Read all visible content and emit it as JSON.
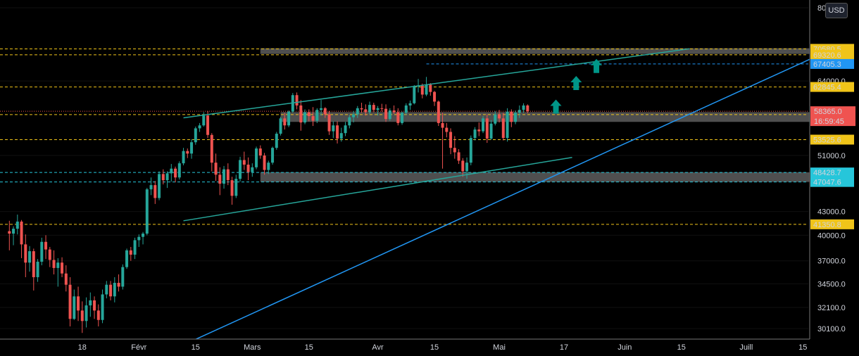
{
  "currency": "USD",
  "chart_data": {
    "type": "candlestick",
    "y_axis_ticks": [
      30100.0,
      32100.0,
      34500.0,
      37000.0,
      40000.0,
      43000.0,
      51000.0,
      64000.0,
      80000.0
    ],
    "x_axis_ticks": [
      {
        "label": "18",
        "day": 18
      },
      {
        "label": "Févr",
        "day": 32
      },
      {
        "label": "15",
        "day": 46
      },
      {
        "label": "Mars",
        "day": 60
      },
      {
        "label": "15",
        "day": 74
      },
      {
        "label": "Avr",
        "day": 91
      },
      {
        "label": "15",
        "day": 105
      },
      {
        "label": "Mai",
        "day": 121
      },
      {
        "label": "17",
        "day": 137
      },
      {
        "label": "Juin",
        "day": 152
      },
      {
        "label": "15",
        "day": 166
      },
      {
        "label": "Juill",
        "day": 182
      },
      {
        "label": "15",
        "day": 196
      }
    ],
    "price_levels": [
      {
        "label": "70580.5",
        "value": 70580.5,
        "kind": "resistance",
        "color": "#f0c419"
      },
      {
        "label": "69320.6",
        "value": 69320.6,
        "kind": "resistance",
        "color": "#f0c419"
      },
      {
        "label": "67405.3",
        "value": 67405.3,
        "kind": "target",
        "color": "#2196f3"
      },
      {
        "label": "62845.4",
        "value": 62845.4,
        "kind": "resistance",
        "color": "#f0c419"
      },
      {
        "label": "57773.3",
        "value": 57773.3,
        "kind": "support",
        "color": "#f0c419"
      },
      {
        "label": "53525.6",
        "value": 53525.6,
        "kind": "support",
        "color": "#f0c419"
      },
      {
        "label": "48428.7",
        "value": 48428.7,
        "kind": "support",
        "color": "#26c6da"
      },
      {
        "label": "47047.6",
        "value": 47047.6,
        "kind": "support",
        "color": "#26c6da"
      },
      {
        "label": "41350.8",
        "value": 41350.8,
        "kind": "support",
        "color": "#f0c419"
      }
    ],
    "current_price": {
      "label": "58365.0",
      "value": 58365.0,
      "countdown": "16:59:45",
      "color": "#ef5350"
    },
    "zones": [
      {
        "from_day": 62,
        "to_day": 206,
        "low": 69500,
        "high": 70700
      },
      {
        "from_day": 67,
        "to_day": 204,
        "low": 56500,
        "high": 58200
      },
      {
        "from_day": 62,
        "to_day": 207,
        "low": 47050,
        "high": 48450
      }
    ],
    "trendlines": [
      {
        "name": "upper channel",
        "color": "#26a69a",
        "points": [
          [
            43,
            57200
          ],
          [
            168,
            70600
          ]
        ]
      },
      {
        "name": "lower channel",
        "color": "#26a69a",
        "points": [
          [
            43,
            41800
          ],
          [
            139,
            50700
          ]
        ]
      },
      {
        "name": "rising support",
        "color": "#2196f3",
        "points": [
          [
            44,
            28800
          ],
          [
            230,
            82000
          ]
        ]
      },
      {
        "name": "dashed target",
        "color": "#2196f3",
        "points": [
          [
            103,
            67405
          ],
          [
            207,
            67405
          ]
        ]
      }
    ],
    "arrows": [
      {
        "day": 135,
        "price": 59200
      },
      {
        "day": 140,
        "price": 63600
      },
      {
        "day": 145,
        "price": 67000
      }
    ],
    "candles": [
      [
        0,
        40500,
        41800,
        38200,
        40200
      ],
      [
        1,
        40200,
        41100,
        38800,
        40800
      ],
      [
        2,
        40800,
        42600,
        40100,
        41700
      ],
      [
        3,
        41700,
        41900,
        37300,
        38900
      ],
      [
        4,
        38900,
        40100,
        35200,
        36800
      ],
      [
        5,
        36800,
        38700,
        35800,
        38100
      ],
      [
        6,
        38100,
        38400,
        33800,
        35200
      ],
      [
        7,
        35200,
        37200,
        34700,
        36900
      ],
      [
        8,
        36900,
        39700,
        36500,
        39200
      ],
      [
        9,
        39200,
        40000,
        37200,
        38300
      ],
      [
        10,
        38300,
        38600,
        36300,
        37100
      ],
      [
        11,
        37100,
        38200,
        35500,
        36200
      ],
      [
        12,
        36200,
        37300,
        34200,
        36800
      ],
      [
        13,
        36800,
        37400,
        35200,
        35600
      ],
      [
        14,
        35600,
        36500,
        33700,
        34400
      ],
      [
        15,
        34400,
        35200,
        30300,
        31000
      ],
      [
        16,
        31000,
        33900,
        30900,
        33200
      ],
      [
        17,
        33200,
        34200,
        30800,
        31800
      ],
      [
        18,
        31800,
        32700,
        29700,
        30800
      ],
      [
        19,
        30800,
        33100,
        30200,
        32300
      ],
      [
        20,
        32300,
        33600,
        31200,
        32800
      ],
      [
        21,
        32800,
        33200,
        31000,
        31800
      ],
      [
        22,
        31800,
        32400,
        30300,
        30900
      ],
      [
        23,
        30900,
        33900,
        30600,
        33400
      ],
      [
        24,
        33400,
        34800,
        33000,
        34400
      ],
      [
        25,
        34400,
        34800,
        32800,
        33200
      ],
      [
        26,
        33200,
        35200,
        32600,
        34600
      ],
      [
        27,
        34600,
        35500,
        33700,
        34200
      ],
      [
        28,
        34200,
        36600,
        33900,
        36300
      ],
      [
        29,
        36300,
        38400,
        36100,
        38200
      ],
      [
        30,
        38200,
        38600,
        37000,
        37700
      ],
      [
        31,
        37700,
        39700,
        37200,
        39400
      ],
      [
        32,
        39400,
        40100,
        38600,
        39800
      ],
      [
        33,
        39800,
        40400,
        38900,
        40200
      ],
      [
        34,
        40200,
        46200,
        40000,
        46000
      ],
      [
        35,
        46000,
        47700,
        45200,
        46600
      ],
      [
        36,
        46600,
        47200,
        44000,
        44800
      ],
      [
        37,
        44800,
        48600,
        44500,
        48200
      ],
      [
        38,
        48200,
        48900,
        46700,
        47300
      ],
      [
        39,
        47300,
        48600,
        46200,
        48300
      ],
      [
        40,
        48300,
        49700,
        47100,
        49000
      ],
      [
        41,
        49000,
        49300,
        47000,
        47700
      ],
      [
        42,
        47700,
        50100,
        47400,
        49800
      ],
      [
        43,
        49800,
        52200,
        49500,
        51700
      ],
      [
        44,
        51700,
        52100,
        50600,
        51300
      ],
      [
        45,
        51300,
        53600,
        50500,
        53100
      ],
      [
        46,
        53100,
        55700,
        52700,
        55400
      ],
      [
        47,
        55400,
        56300,
        54800,
        55900
      ],
      [
        48,
        55900,
        58200,
        55700,
        57600
      ],
      [
        49,
        57600,
        58400,
        53800,
        54300
      ],
      [
        50,
        54300,
        54600,
        48600,
        49900
      ],
      [
        51,
        49900,
        51300,
        47200,
        48100
      ],
      [
        52,
        48100,
        49200,
        45200,
        46800
      ],
      [
        53,
        46800,
        49400,
        46100,
        48900
      ],
      [
        54,
        48900,
        49800,
        46600,
        47300
      ],
      [
        55,
        47300,
        47800,
        43900,
        45100
      ],
      [
        56,
        45100,
        48100,
        44800,
        47500
      ],
      [
        57,
        47500,
        50800,
        47100,
        50300
      ],
      [
        58,
        50300,
        51600,
        48800,
        49600
      ],
      [
        59,
        49600,
        50700,
        47300,
        48500
      ],
      [
        60,
        48500,
        49800,
        47800,
        49200
      ],
      [
        61,
        49200,
        52400,
        48900,
        52100
      ],
      [
        62,
        52100,
        52600,
        50500,
        51000
      ],
      [
        63,
        51000,
        51400,
        48100,
        48800
      ],
      [
        64,
        48800,
        50200,
        48200,
        49900
      ],
      [
        65,
        49900,
        52400,
        49600,
        52200
      ],
      [
        66,
        52200,
        54800,
        51900,
        54500
      ],
      [
        67,
        54500,
        57400,
        54200,
        57100
      ],
      [
        68,
        57100,
        58100,
        55200,
        55900
      ],
      [
        69,
        55900,
        58500,
        55600,
        58300
      ],
      [
        70,
        58300,
        61700,
        58100,
        61300
      ],
      [
        71,
        61300,
        61800,
        58700,
        59400
      ],
      [
        72,
        59400,
        60400,
        55000,
        56400
      ],
      [
        73,
        56400,
        58700,
        56100,
        58200
      ],
      [
        74,
        58200,
        58700,
        56600,
        57500
      ],
      [
        75,
        57500,
        59100,
        55800,
        56700
      ],
      [
        76,
        56700,
        58900,
        56300,
        58600
      ],
      [
        77,
        58600,
        60400,
        57600,
        58900
      ],
      [
        78,
        58900,
        59100,
        57200,
        57800
      ],
      [
        79,
        57800,
        58400,
        54300,
        54900
      ],
      [
        80,
        54900,
        56600,
        53800,
        55900
      ],
      [
        81,
        55900,
        56600,
        52900,
        53700
      ],
      [
        82,
        53700,
        55500,
        53200,
        54600
      ],
      [
        83,
        54600,
        56500,
        54100,
        55900
      ],
      [
        84,
        55900,
        57700,
        55400,
        57300
      ],
      [
        85,
        57300,
        58400,
        56400,
        57800
      ],
      [
        86,
        57800,
        59300,
        57200,
        58900
      ],
      [
        87,
        58900,
        59900,
        58100,
        58700
      ],
      [
        88,
        58700,
        59600,
        57600,
        58200
      ],
      [
        89,
        58200,
        60100,
        57800,
        59500
      ],
      [
        90,
        59500,
        59900,
        58200,
        58600
      ],
      [
        91,
        58600,
        59300,
        57600,
        58900
      ],
      [
        92,
        58900,
        59700,
        58300,
        58800
      ],
      [
        93,
        58800,
        59600,
        56500,
        57000
      ],
      [
        94,
        57000,
        58900,
        56700,
        58500
      ],
      [
        95,
        58500,
        59400,
        57900,
        58200
      ],
      [
        96,
        58200,
        58900,
        55900,
        56300
      ],
      [
        97,
        56300,
        58300,
        56000,
        58100
      ],
      [
        98,
        58100,
        59800,
        57700,
        59400
      ],
      [
        99,
        59400,
        60300,
        58600,
        59800
      ],
      [
        100,
        59800,
        63200,
        59600,
        62900
      ],
      [
        101,
        62900,
        64400,
        61800,
        63100
      ],
      [
        102,
        63100,
        63500,
        60700,
        61400
      ],
      [
        103,
        61400,
        64800,
        61100,
        63300
      ],
      [
        104,
        63300,
        63600,
        61200,
        61900
      ],
      [
        105,
        61900,
        62100,
        59300,
        60100
      ],
      [
        106,
        60100,
        60300,
        55800,
        56300
      ],
      [
        107,
        56300,
        58100,
        49000,
        55500
      ],
      [
        108,
        55500,
        56300,
        53900,
        54800
      ],
      [
        109,
        54800,
        55400,
        51200,
        52200
      ],
      [
        110,
        52200,
        54100,
        50500,
        51500
      ],
      [
        111,
        51500,
        52000,
        49700,
        50200
      ],
      [
        112,
        50200,
        50600,
        47800,
        48600
      ],
      [
        113,
        48600,
        50700,
        47500,
        49900
      ],
      [
        114,
        49900,
        54200,
        49500,
        53800
      ],
      [
        115,
        53800,
        55600,
        53400,
        55200
      ],
      [
        116,
        55200,
        56400,
        54100,
        54900
      ],
      [
        117,
        54900,
        57500,
        54600,
        57100
      ],
      [
        118,
        57100,
        57800,
        53000,
        53700
      ],
      [
        119,
        53700,
        56800,
        53500,
        56200
      ],
      [
        120,
        56200,
        58400,
        55900,
        57800
      ],
      [
        121,
        57800,
        58600,
        56400,
        57100
      ],
      [
        122,
        57100,
        58100,
        53400,
        53800
      ],
      [
        123,
        53800,
        58900,
        53200,
        58300
      ],
      [
        124,
        58300,
        58700,
        55600,
        56500
      ],
      [
        125,
        56500,
        58500,
        56100,
        58100
      ],
      [
        126,
        58100,
        59400,
        57200,
        58600
      ],
      [
        127,
        58600,
        59800,
        58100,
        59400
      ],
      [
        128,
        59400,
        59600,
        58000,
        58365
      ]
    ]
  }
}
